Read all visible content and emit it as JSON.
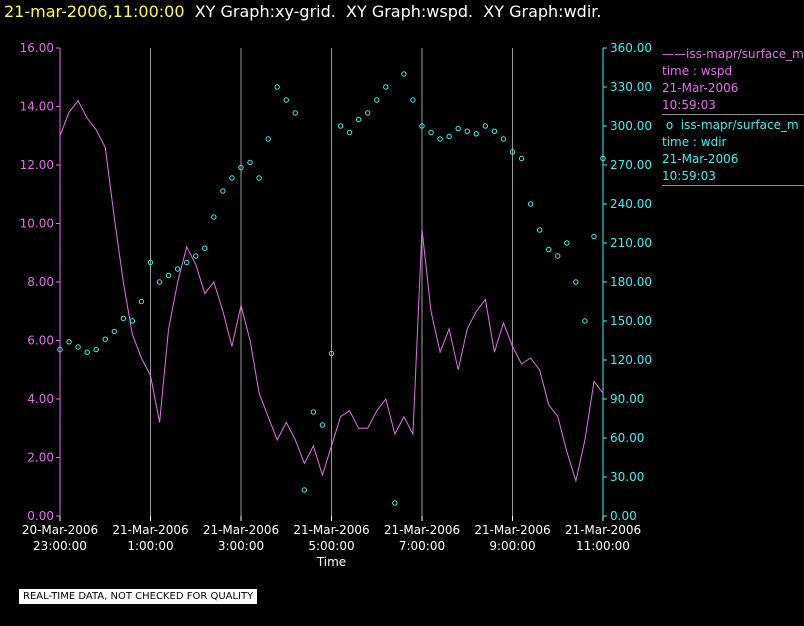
{
  "header": {
    "timestamp": "21-mar-2006,11:00:00",
    "graph_titles": [
      "XY Graph:xy-grid.",
      "XY Graph:wspd.",
      "XY Graph:wdir."
    ]
  },
  "legend": [
    {
      "symbol": "line",
      "name": "iss-mapr/surface_m",
      "desc": "time : wspd",
      "date": "21-Mar-2006",
      "time": "10:59:03",
      "color": "#e070e8"
    },
    {
      "symbol": "circle",
      "name": "iss-mapr/surface_m",
      "desc": "time : wdir",
      "date": "21-Mar-2006",
      "time": "10:59:03",
      "color": "#40f0f0"
    }
  ],
  "footer": {
    "quality_note": "REAL-TIME DATA, NOT CHECKED FOR QUALITY"
  },
  "chart_data": {
    "type": "line",
    "xlabel": "Time",
    "xlim": [
      -1.0,
      11.0
    ],
    "x_units": "hours relative to 21-Mar-2006 00:00",
    "x_ticks": [
      {
        "value": -1,
        "line1": "20-Mar-2006",
        "line2": "23:00:00"
      },
      {
        "value": 1,
        "line1": "21-Mar-2006",
        "line2": "1:00:00"
      },
      {
        "value": 3,
        "line1": "21-Mar-2006",
        "line2": "3:00:00"
      },
      {
        "value": 5,
        "line1": "21-Mar-2006",
        "line2": "5:00:00"
      },
      {
        "value": 7,
        "line1": "21-Mar-2006",
        "line2": "7:00:00"
      },
      {
        "value": 9,
        "line1": "21-Mar-2006",
        "line2": "9:00:00"
      },
      {
        "value": 11,
        "line1": "21-Mar-2006",
        "line2": "11:00:00"
      }
    ],
    "y_left": {
      "lim": [
        0,
        16
      ],
      "ticks": [
        "0.00",
        "2.00",
        "4.00",
        "6.00",
        "8.00",
        "10.00",
        "12.00",
        "14.00",
        "16.00"
      ],
      "color": "#e070e8"
    },
    "y_right": {
      "lim": [
        0,
        360
      ],
      "ticks": [
        "0.00",
        "30.00",
        "60.00",
        "90.00",
        "120.00",
        "150.00",
        "180.00",
        "210.00",
        "240.00",
        "270.00",
        "300.00",
        "330.00",
        "360.00"
      ],
      "color": "#40f0f0"
    },
    "grid": "vertical",
    "legend_position": "right",
    "series": [
      {
        "axis": "left",
        "style": "line",
        "color": "#e070e8",
        "x": [
          -1.0,
          -0.8,
          -0.6,
          -0.4,
          -0.2,
          0.0,
          0.2,
          0.4,
          0.6,
          0.8,
          1.0,
          1.2,
          1.4,
          1.6,
          1.8,
          2.0,
          2.2,
          2.4,
          2.6,
          2.8,
          3.0,
          3.2,
          3.4,
          3.6,
          3.8,
          4.0,
          4.2,
          4.4,
          4.6,
          4.8,
          5.0,
          5.2,
          5.4,
          5.6,
          5.8,
          6.0,
          6.2,
          6.4,
          6.6,
          6.8,
          7.0,
          7.2,
          7.4,
          7.6,
          7.8,
          8.0,
          8.2,
          8.4,
          8.6,
          8.8,
          9.0,
          9.2,
          9.4,
          9.6,
          9.8,
          10.0,
          10.2,
          10.4,
          10.6,
          10.8,
          11.0
        ],
        "y": [
          13.0,
          13.8,
          14.2,
          13.6,
          13.2,
          12.6,
          10.2,
          8.0,
          6.2,
          5.4,
          4.8,
          3.2,
          6.4,
          8.0,
          9.2,
          8.6,
          7.6,
          8.0,
          7.0,
          5.8,
          7.2,
          6.0,
          4.2,
          3.4,
          2.6,
          3.2,
          2.6,
          1.8,
          2.4,
          1.4,
          2.4,
          3.4,
          3.6,
          3.0,
          3.0,
          3.6,
          4.0,
          2.8,
          3.4,
          2.8,
          9.8,
          7.0,
          5.6,
          6.4,
          5.0,
          6.4,
          7.0,
          7.4,
          5.6,
          6.6,
          5.8,
          5.2,
          5.4,
          5.0,
          3.8,
          3.4,
          2.2,
          1.2,
          2.6,
          4.6,
          4.2
        ]
      },
      {
        "axis": "right",
        "style": "circle",
        "color": "#40f0f0",
        "x": [
          -1.0,
          -0.8,
          -0.6,
          -0.4,
          -0.2,
          0.0,
          0.2,
          0.4,
          0.6,
          0.8,
          1.0,
          1.2,
          1.4,
          1.6,
          1.8,
          2.0,
          2.2,
          2.4,
          2.6,
          2.8,
          3.0,
          3.2,
          3.4,
          3.6,
          3.8,
          4.0,
          4.2,
          4.4,
          4.6,
          4.8,
          5.0,
          5.2,
          5.4,
          5.6,
          5.8,
          6.0,
          6.2,
          6.4,
          6.6,
          6.8,
          7.0,
          7.2,
          7.4,
          7.6,
          7.8,
          8.0,
          8.2,
          8.4,
          8.6,
          8.8,
          9.0,
          9.2,
          9.4,
          9.6,
          9.8,
          10.0,
          10.2,
          10.4,
          10.6,
          10.8,
          11.0
        ],
        "y": [
          128,
          134,
          130,
          126,
          128,
          136,
          142,
          152,
          150,
          165,
          195,
          180,
          185,
          190,
          195,
          200,
          206,
          230,
          250,
          260,
          268,
          272,
          260,
          290,
          330,
          320,
          310,
          20,
          80,
          70,
          125,
          300,
          295,
          305,
          310,
          320,
          330,
          10,
          340,
          320,
          300,
          295,
          290,
          292,
          298,
          296,
          294,
          300,
          296,
          290,
          280,
          275,
          240,
          220,
          205,
          200,
          210,
          180,
          150,
          215,
          275
        ]
      }
    ]
  }
}
